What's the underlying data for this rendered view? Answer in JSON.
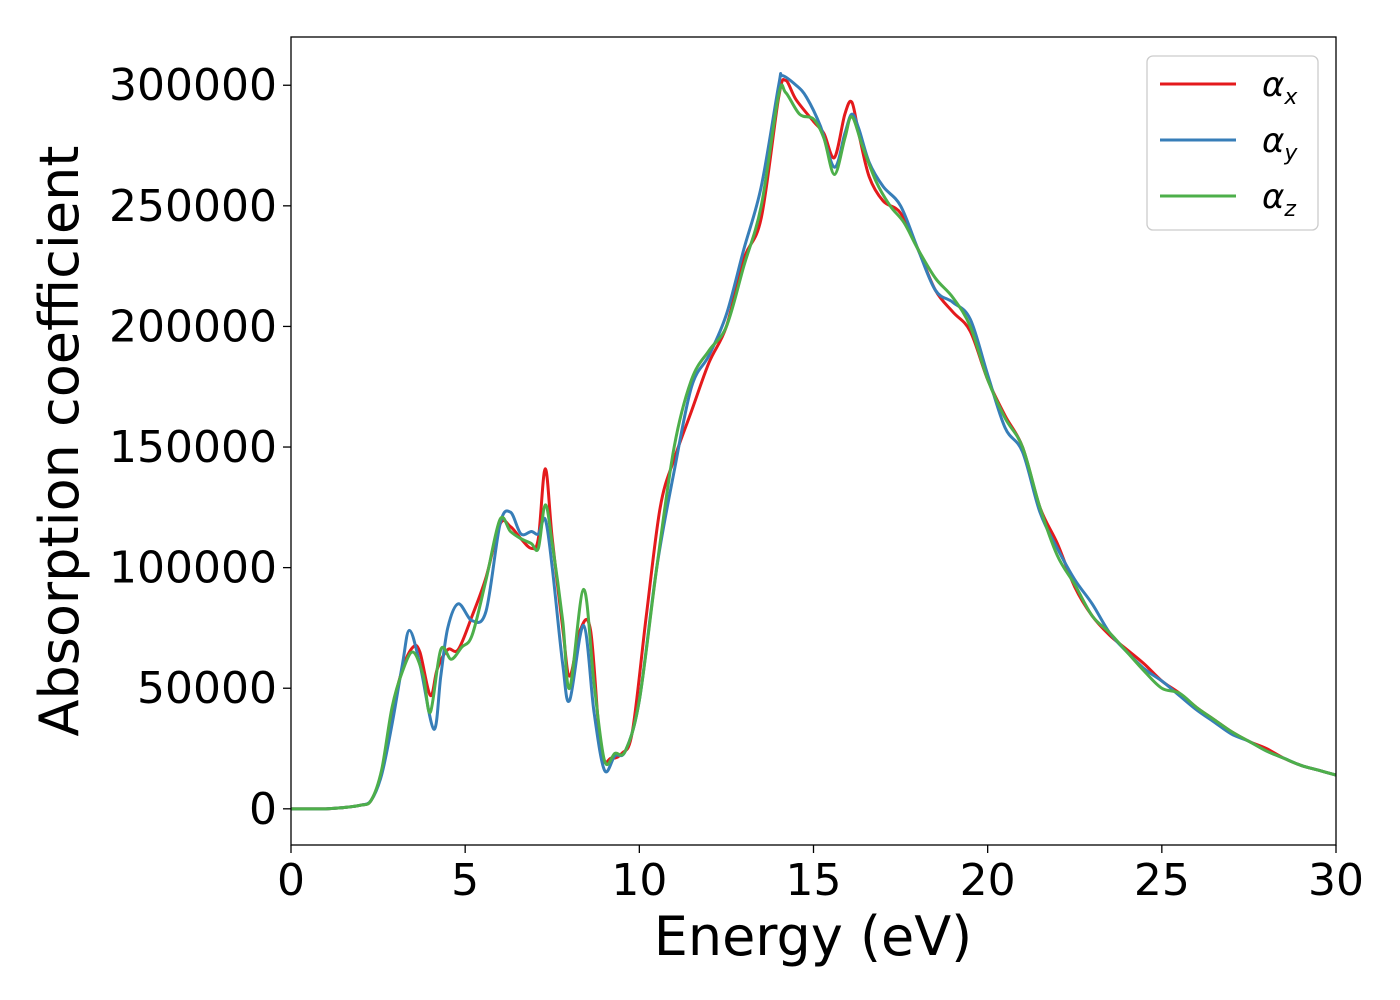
{
  "chart_data": {
    "type": "line",
    "title": "",
    "xlabel": "Energy (eV)",
    "ylabel": "Absorption coefficient",
    "xlim": [
      0,
      30
    ],
    "ylim": [
      -15000,
      320000
    ],
    "xticks": [
      0,
      5,
      10,
      15,
      20,
      25,
      30
    ],
    "yticks": [
      0,
      50000,
      100000,
      150000,
      200000,
      250000,
      300000
    ],
    "grid": false,
    "legend_placement": "top-right",
    "series": [
      {
        "name": "α_x",
        "legend_base": "α",
        "legend_sub": "x",
        "color": "#e41a1c",
        "x": [
          0,
          1,
          1.5,
          2,
          2.3,
          2.6,
          2.9,
          3.2,
          3.5,
          3.7,
          4.0,
          4.2,
          4.5,
          4.8,
          5.2,
          5.6,
          6.0,
          6.3,
          6.6,
          6.9,
          7.1,
          7.3,
          7.5,
          7.8,
          8.0,
          8.3,
          8.6,
          8.9,
          9.2,
          9.5,
          9.8,
          10.2,
          10.6,
          11.0,
          11.5,
          12.0,
          12.5,
          13.0,
          13.5,
          14.0,
          14.2,
          14.5,
          15.0,
          15.3,
          15.6,
          15.9,
          16.1,
          16.3,
          16.6,
          17.0,
          17.5,
          18.0,
          18.5,
          19.0,
          19.5,
          20.0,
          20.5,
          21.0,
          21.5,
          22.0,
          22.5,
          23.0,
          23.5,
          24.0,
          24.5,
          25.0,
          25.5,
          26.0,
          26.5,
          27.0,
          27.5,
          28.0,
          28.5,
          29.0,
          29.5,
          30.0
        ],
        "y": [
          0,
          0,
          500,
          1500,
          3500,
          15000,
          40000,
          58000,
          67000,
          65000,
          47000,
          58000,
          66000,
          66000,
          80000,
          96000,
          118000,
          117000,
          112000,
          108000,
          112000,
          141000,
          112000,
          75000,
          55000,
          74000,
          74000,
          24000,
          21000,
          23000,
          32000,
          80000,
          125000,
          145000,
          165000,
          185000,
          200000,
          228000,
          245000,
          295000,
          302000,
          294000,
          285000,
          280000,
          270000,
          288000,
          293000,
          280000,
          262000,
          252000,
          247000,
          232000,
          215000,
          206000,
          198000,
          178000,
          163000,
          150000,
          125000,
          110000,
          92000,
          80000,
          72000,
          66000,
          60000,
          53000,
          48000,
          42000,
          37000,
          32000,
          28000,
          25000,
          21000,
          18000,
          16000,
          14000
        ]
      },
      {
        "name": "α_y",
        "legend_base": "α",
        "legend_sub": "y",
        "color": "#377eb8",
        "x": [
          0,
          1,
          1.5,
          2,
          2.3,
          2.6,
          2.9,
          3.2,
          3.4,
          3.7,
          4.1,
          4.3,
          4.5,
          4.8,
          5.2,
          5.6,
          6.0,
          6.3,
          6.6,
          6.9,
          7.1,
          7.3,
          7.5,
          7.8,
          8.0,
          8.4,
          8.7,
          9.0,
          9.3,
          9.6,
          10.0,
          10.5,
          11.0,
          11.5,
          12.0,
          12.5,
          13.0,
          13.5,
          14.0,
          14.1,
          14.5,
          14.8,
          15.2,
          15.6,
          15.9,
          16.1,
          16.3,
          16.6,
          17.0,
          17.5,
          18.0,
          18.5,
          19.0,
          19.5,
          20.0,
          20.5,
          21.0,
          21.5,
          22.0,
          22.5,
          23.0,
          23.5,
          24.0,
          24.5,
          25.0,
          25.5,
          26.0,
          26.5,
          27.0,
          27.5,
          28.0,
          28.5,
          29.0,
          29.5,
          30.0
        ],
        "y": [
          0,
          0,
          500,
          1500,
          3500,
          14000,
          35000,
          60000,
          74000,
          60000,
          33000,
          55000,
          75000,
          85000,
          78000,
          82000,
          118000,
          123000,
          114000,
          115000,
          114000,
          120000,
          100000,
          60000,
          45000,
          76000,
          40000,
          16000,
          22000,
          24000,
          45000,
          100000,
          140000,
          175000,
          188000,
          205000,
          232000,
          258000,
          300000,
          304000,
          300000,
          295000,
          283000,
          266000,
          280000,
          288000,
          282000,
          268000,
          258000,
          250000,
          232000,
          215000,
          210000,
          203000,
          180000,
          158000,
          148000,
          123000,
          108000,
          95000,
          85000,
          73000,
          65000,
          58000,
          53000,
          47000,
          41000,
          36000,
          31000,
          28000,
          24000,
          21000,
          18000,
          16000,
          14000
        ]
      },
      {
        "name": "α_z",
        "legend_base": "α",
        "legend_sub": "z",
        "color": "#4daf4a",
        "x": [
          0,
          1,
          1.5,
          2,
          2.3,
          2.6,
          2.9,
          3.2,
          3.5,
          3.8,
          4.0,
          4.3,
          4.6,
          4.9,
          5.2,
          5.6,
          6.0,
          6.3,
          6.6,
          6.9,
          7.1,
          7.3,
          7.5,
          7.8,
          8.0,
          8.4,
          8.7,
          9.0,
          9.3,
          9.6,
          10.0,
          10.5,
          11.0,
          11.5,
          12.0,
          12.5,
          13.0,
          13.5,
          14.0,
          14.2,
          14.6,
          15.0,
          15.3,
          15.6,
          15.9,
          16.1,
          16.4,
          16.8,
          17.2,
          17.6,
          18.0,
          18.5,
          19.0,
          19.5,
          20.0,
          20.5,
          21.0,
          21.5,
          22.0,
          22.5,
          23.0,
          23.5,
          24.0,
          24.5,
          25.0,
          25.5,
          26.0,
          26.5,
          27.0,
          27.5,
          28.0,
          28.5,
          29.0,
          29.5,
          30.0
        ],
        "y": [
          0,
          0,
          500,
          1500,
          3500,
          16000,
          42000,
          57000,
          65000,
          55000,
          40000,
          66000,
          62000,
          67000,
          72000,
          95000,
          120000,
          115000,
          112000,
          110000,
          108000,
          126000,
          110000,
          78000,
          50000,
          91000,
          52000,
          20000,
          23000,
          24000,
          45000,
          100000,
          150000,
          178000,
          190000,
          200000,
          225000,
          250000,
          296000,
          297000,
          288000,
          286000,
          278000,
          263000,
          278000,
          287000,
          275000,
          260000,
          250000,
          243000,
          232000,
          220000,
          212000,
          200000,
          178000,
          162000,
          150000,
          125000,
          105000,
          93000,
          80000,
          73000,
          65000,
          57000,
          50000,
          48000,
          42000,
          37000,
          32000,
          28000,
          24000,
          21000,
          18000,
          16000,
          14000
        ]
      }
    ]
  }
}
